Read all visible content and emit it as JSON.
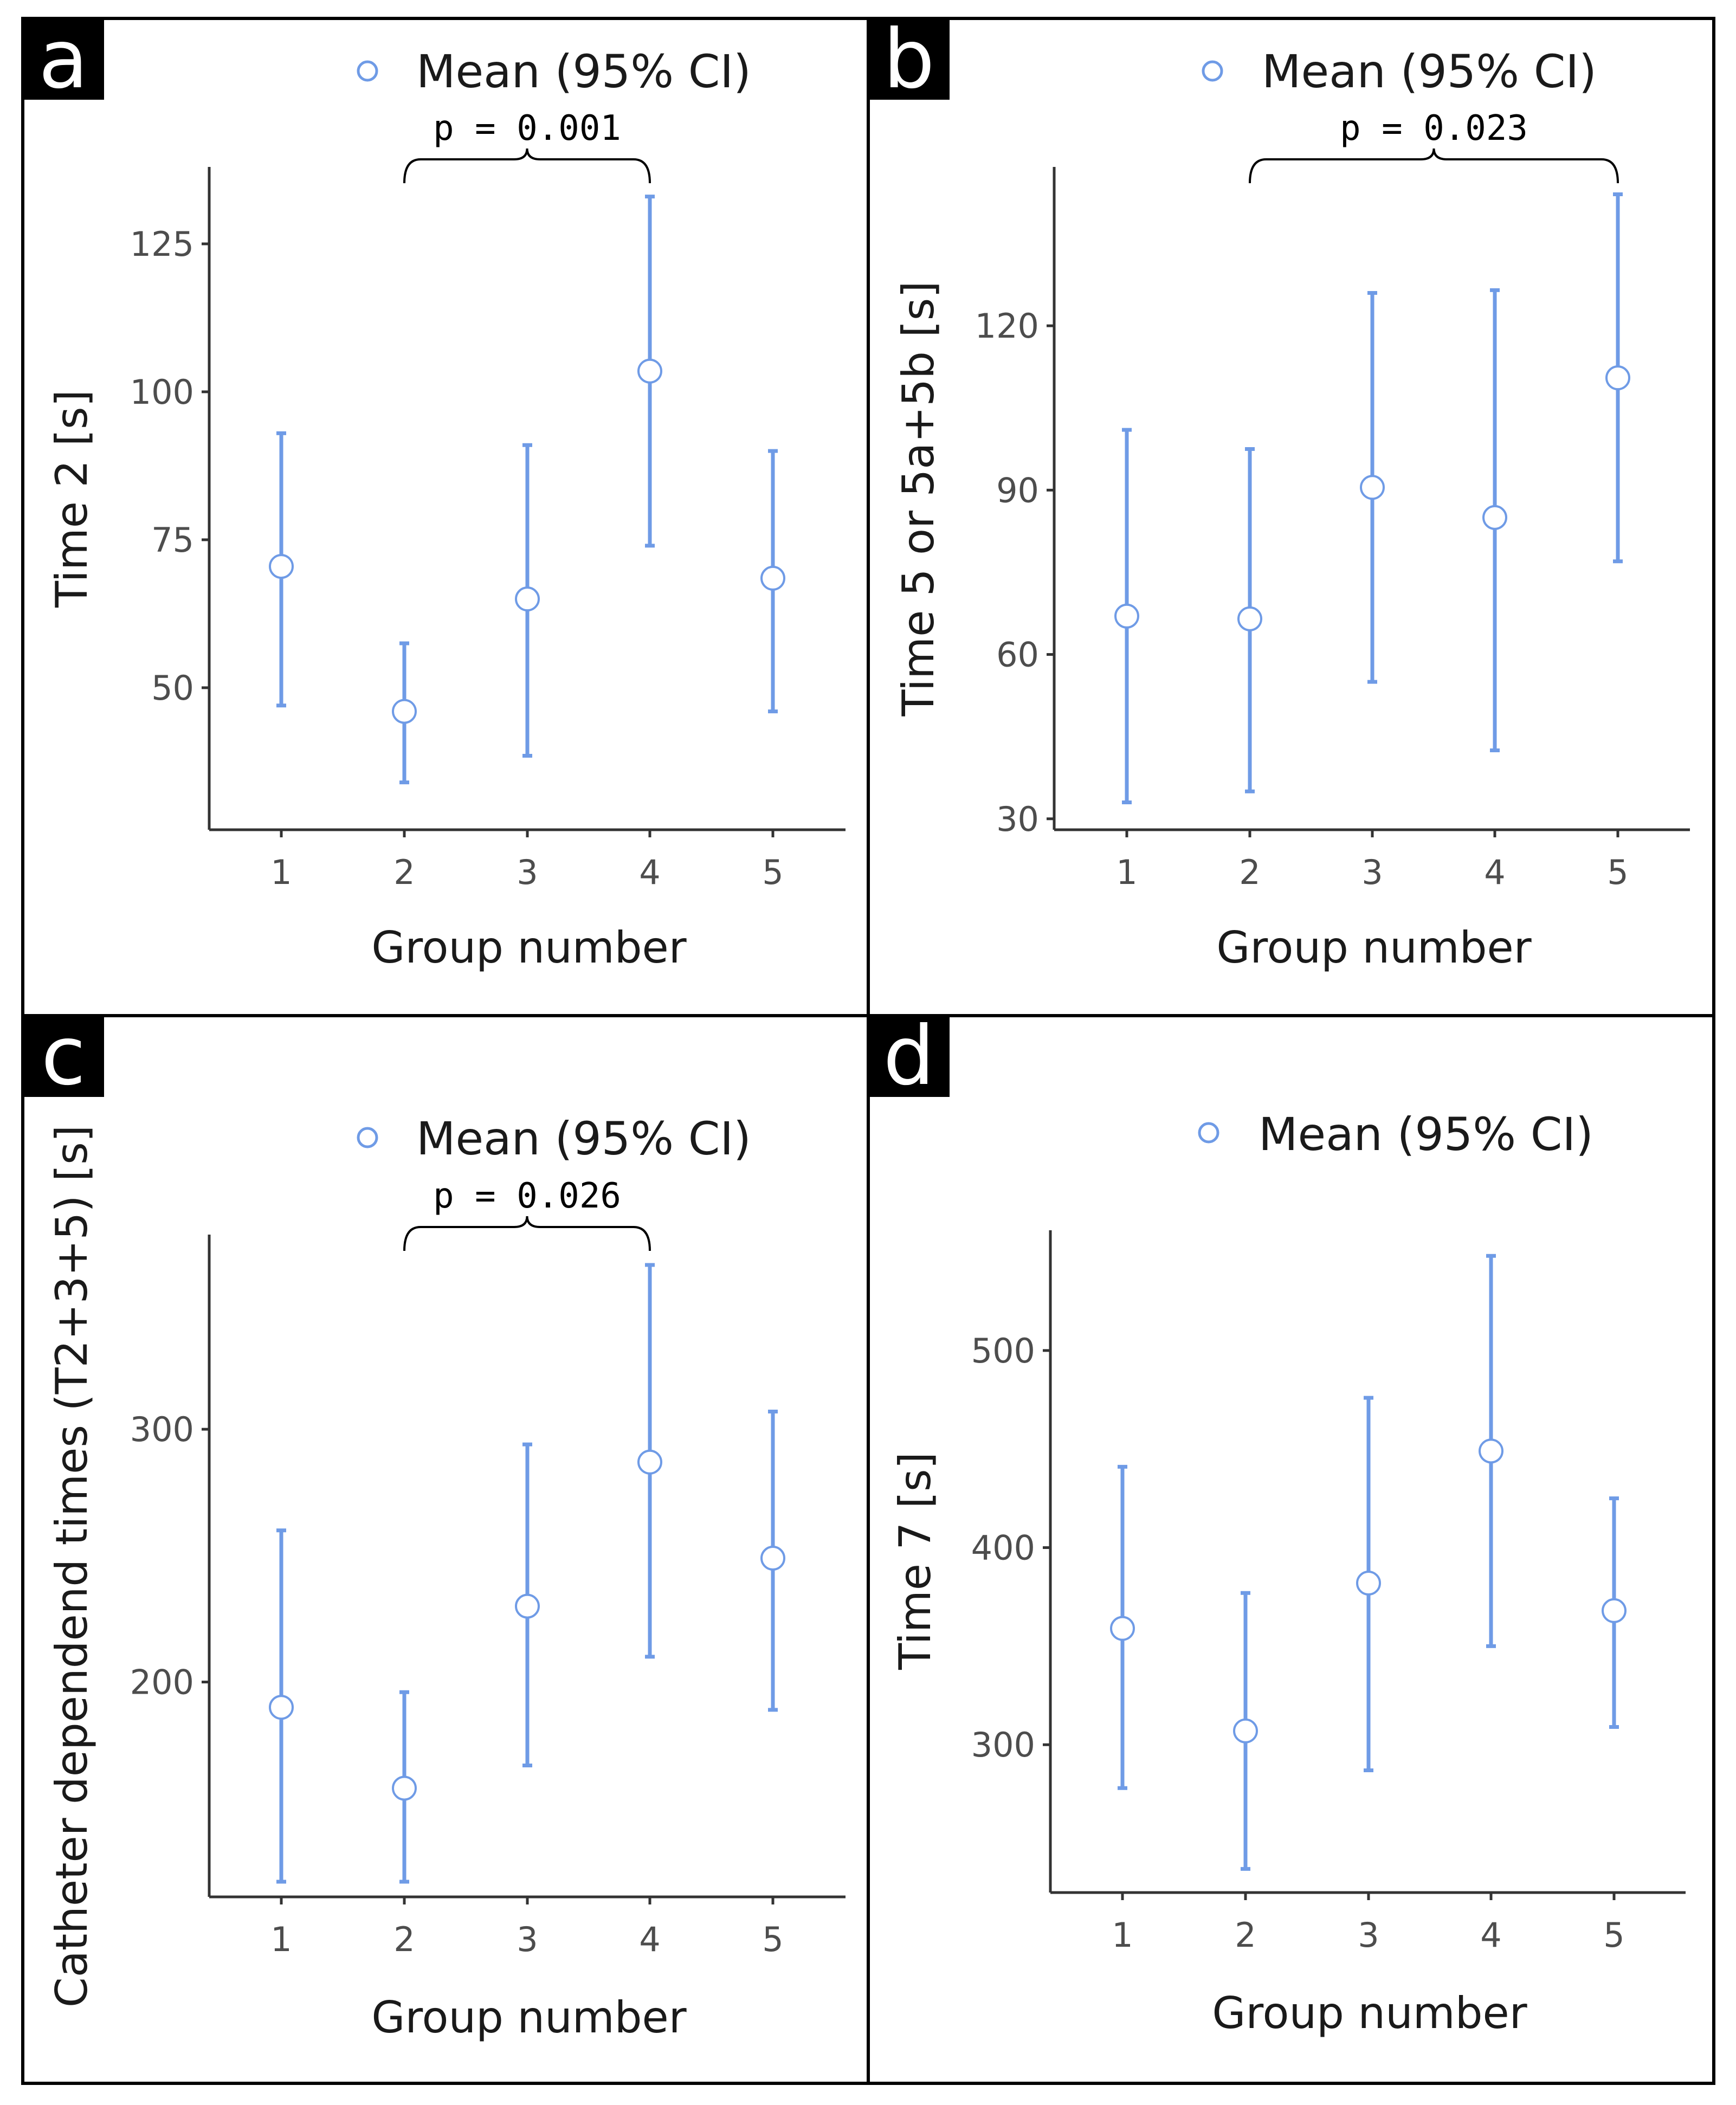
{
  "figure": {
    "series_color": "#6f9be6",
    "point_fill": "#ffffff"
  },
  "chart_data": [
    {
      "panel": "a",
      "type": "errorbar",
      "legend": "Mean (95% CI)",
      "xlabel": "Group number",
      "ylabel": "Time 2 [s]",
      "categories": [
        "1",
        "2",
        "3",
        "4",
        "5"
      ],
      "yticks": [
        50,
        75,
        100,
        125
      ],
      "ylim": [
        26,
        138
      ],
      "means": [
        70.5,
        46,
        65,
        103.5,
        68.5
      ],
      "lower": [
        47,
        34,
        38.5,
        74,
        46
      ],
      "upper": [
        93,
        57.5,
        91,
        133,
        90
      ],
      "bracket": {
        "from": "2",
        "to": "4",
        "label": "p = 0.001"
      }
    },
    {
      "panel": "b",
      "type": "errorbar",
      "legend": "Mean (95% CI)",
      "xlabel": "Group number",
      "ylabel": "Time 5 or 5a+5b [s]",
      "categories": [
        "1",
        "2",
        "3",
        "4",
        "5"
      ],
      "yticks": [
        30,
        60,
        90,
        120
      ],
      "ylim": [
        28,
        149
      ],
      "means": [
        67,
        66.5,
        90.5,
        85,
        110.5
      ],
      "lower": [
        33,
        35,
        55,
        42.5,
        77
      ],
      "upper": [
        101,
        97.5,
        126,
        126.5,
        144
      ],
      "bracket": {
        "from": "2",
        "to": "5",
        "label": "p = 0.023"
      }
    },
    {
      "panel": "c",
      "type": "errorbar",
      "legend": "Mean (95% CI)",
      "xlabel": "Group number",
      "ylabel": "Catheter dependend times (T2+3+5) [s]",
      "categories": [
        "1",
        "2",
        "3",
        "4",
        "5"
      ],
      "yticks": [
        200,
        300
      ],
      "ylim": [
        115,
        377
      ],
      "means": [
        190,
        158,
        230,
        287,
        249
      ],
      "lower": [
        121,
        121,
        167,
        210,
        189
      ],
      "upper": [
        260,
        196,
        294,
        365,
        307
      ],
      "bracket": {
        "from": "2",
        "to": "4",
        "label": "p = 0.026"
      }
    },
    {
      "panel": "d",
      "type": "errorbar",
      "legend": "Mean (95% CI)",
      "xlabel": "Group number",
      "ylabel": "Time 7 [s]",
      "categories": [
        "1",
        "2",
        "3",
        "4",
        "5"
      ],
      "yticks": [
        300,
        400,
        500
      ],
      "ylim": [
        225,
        561
      ],
      "means": [
        359,
        307,
        382,
        449,
        368
      ],
      "lower": [
        278,
        237,
        287,
        350,
        309
      ],
      "upper": [
        441,
        377,
        476,
        548,
        425
      ],
      "bracket": null
    }
  ]
}
